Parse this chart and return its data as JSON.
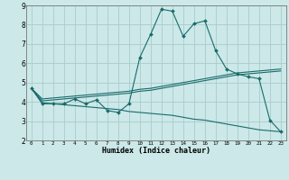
{
  "xlabel": "Humidex (Indice chaleur)",
  "bg_color": "#cce8e8",
  "grid_color": "#aacccc",
  "line_color": "#1a6b6b",
  "xlim": [
    -0.5,
    23.5
  ],
  "ylim": [
    2,
    9
  ],
  "xticks": [
    0,
    1,
    2,
    3,
    4,
    5,
    6,
    7,
    8,
    9,
    10,
    11,
    12,
    13,
    14,
    15,
    16,
    17,
    18,
    19,
    20,
    21,
    22,
    23
  ],
  "yticks": [
    2,
    3,
    4,
    5,
    6,
    7,
    8,
    9
  ],
  "series1_x": [
    0,
    1,
    2,
    3,
    4,
    5,
    6,
    7,
    8,
    9,
    10,
    11,
    12,
    13,
    14,
    15,
    16,
    17,
    18,
    19,
    20,
    21,
    22,
    23
  ],
  "series1_y": [
    4.7,
    3.9,
    3.9,
    3.9,
    4.15,
    3.9,
    4.1,
    3.55,
    3.45,
    3.9,
    6.3,
    7.5,
    8.8,
    8.7,
    7.4,
    8.05,
    8.2,
    6.65,
    5.7,
    5.45,
    5.3,
    5.2,
    3.05,
    2.45
  ],
  "series2_x": [
    0,
    1,
    2,
    3,
    4,
    5,
    6,
    7,
    8,
    9,
    10,
    11,
    12,
    13,
    14,
    15,
    16,
    17,
    18,
    19,
    20,
    21,
    22,
    23
  ],
  "series2_y": [
    4.7,
    4.05,
    4.1,
    4.15,
    4.2,
    4.25,
    4.3,
    4.35,
    4.4,
    4.45,
    4.55,
    4.6,
    4.7,
    4.8,
    4.9,
    5.0,
    5.1,
    5.2,
    5.3,
    5.4,
    5.45,
    5.5,
    5.55,
    5.6
  ],
  "series3_x": [
    0,
    1,
    2,
    3,
    4,
    5,
    6,
    7,
    8,
    9,
    10,
    11,
    12,
    13,
    14,
    15,
    16,
    17,
    18,
    19,
    20,
    21,
    22,
    23
  ],
  "series3_y": [
    4.7,
    4.15,
    4.2,
    4.25,
    4.3,
    4.35,
    4.4,
    4.45,
    4.5,
    4.55,
    4.65,
    4.7,
    4.8,
    4.9,
    5.0,
    5.1,
    5.2,
    5.3,
    5.4,
    5.5,
    5.55,
    5.6,
    5.65,
    5.7
  ],
  "series4_x": [
    0,
    1,
    2,
    3,
    4,
    5,
    6,
    7,
    8,
    9,
    10,
    11,
    12,
    13,
    14,
    15,
    16,
    17,
    18,
    19,
    20,
    21,
    22,
    23
  ],
  "series4_y": [
    4.7,
    3.95,
    3.9,
    3.85,
    3.8,
    3.75,
    3.7,
    3.65,
    3.6,
    3.5,
    3.45,
    3.4,
    3.35,
    3.3,
    3.2,
    3.1,
    3.05,
    2.95,
    2.85,
    2.75,
    2.65,
    2.55,
    2.5,
    2.45
  ]
}
